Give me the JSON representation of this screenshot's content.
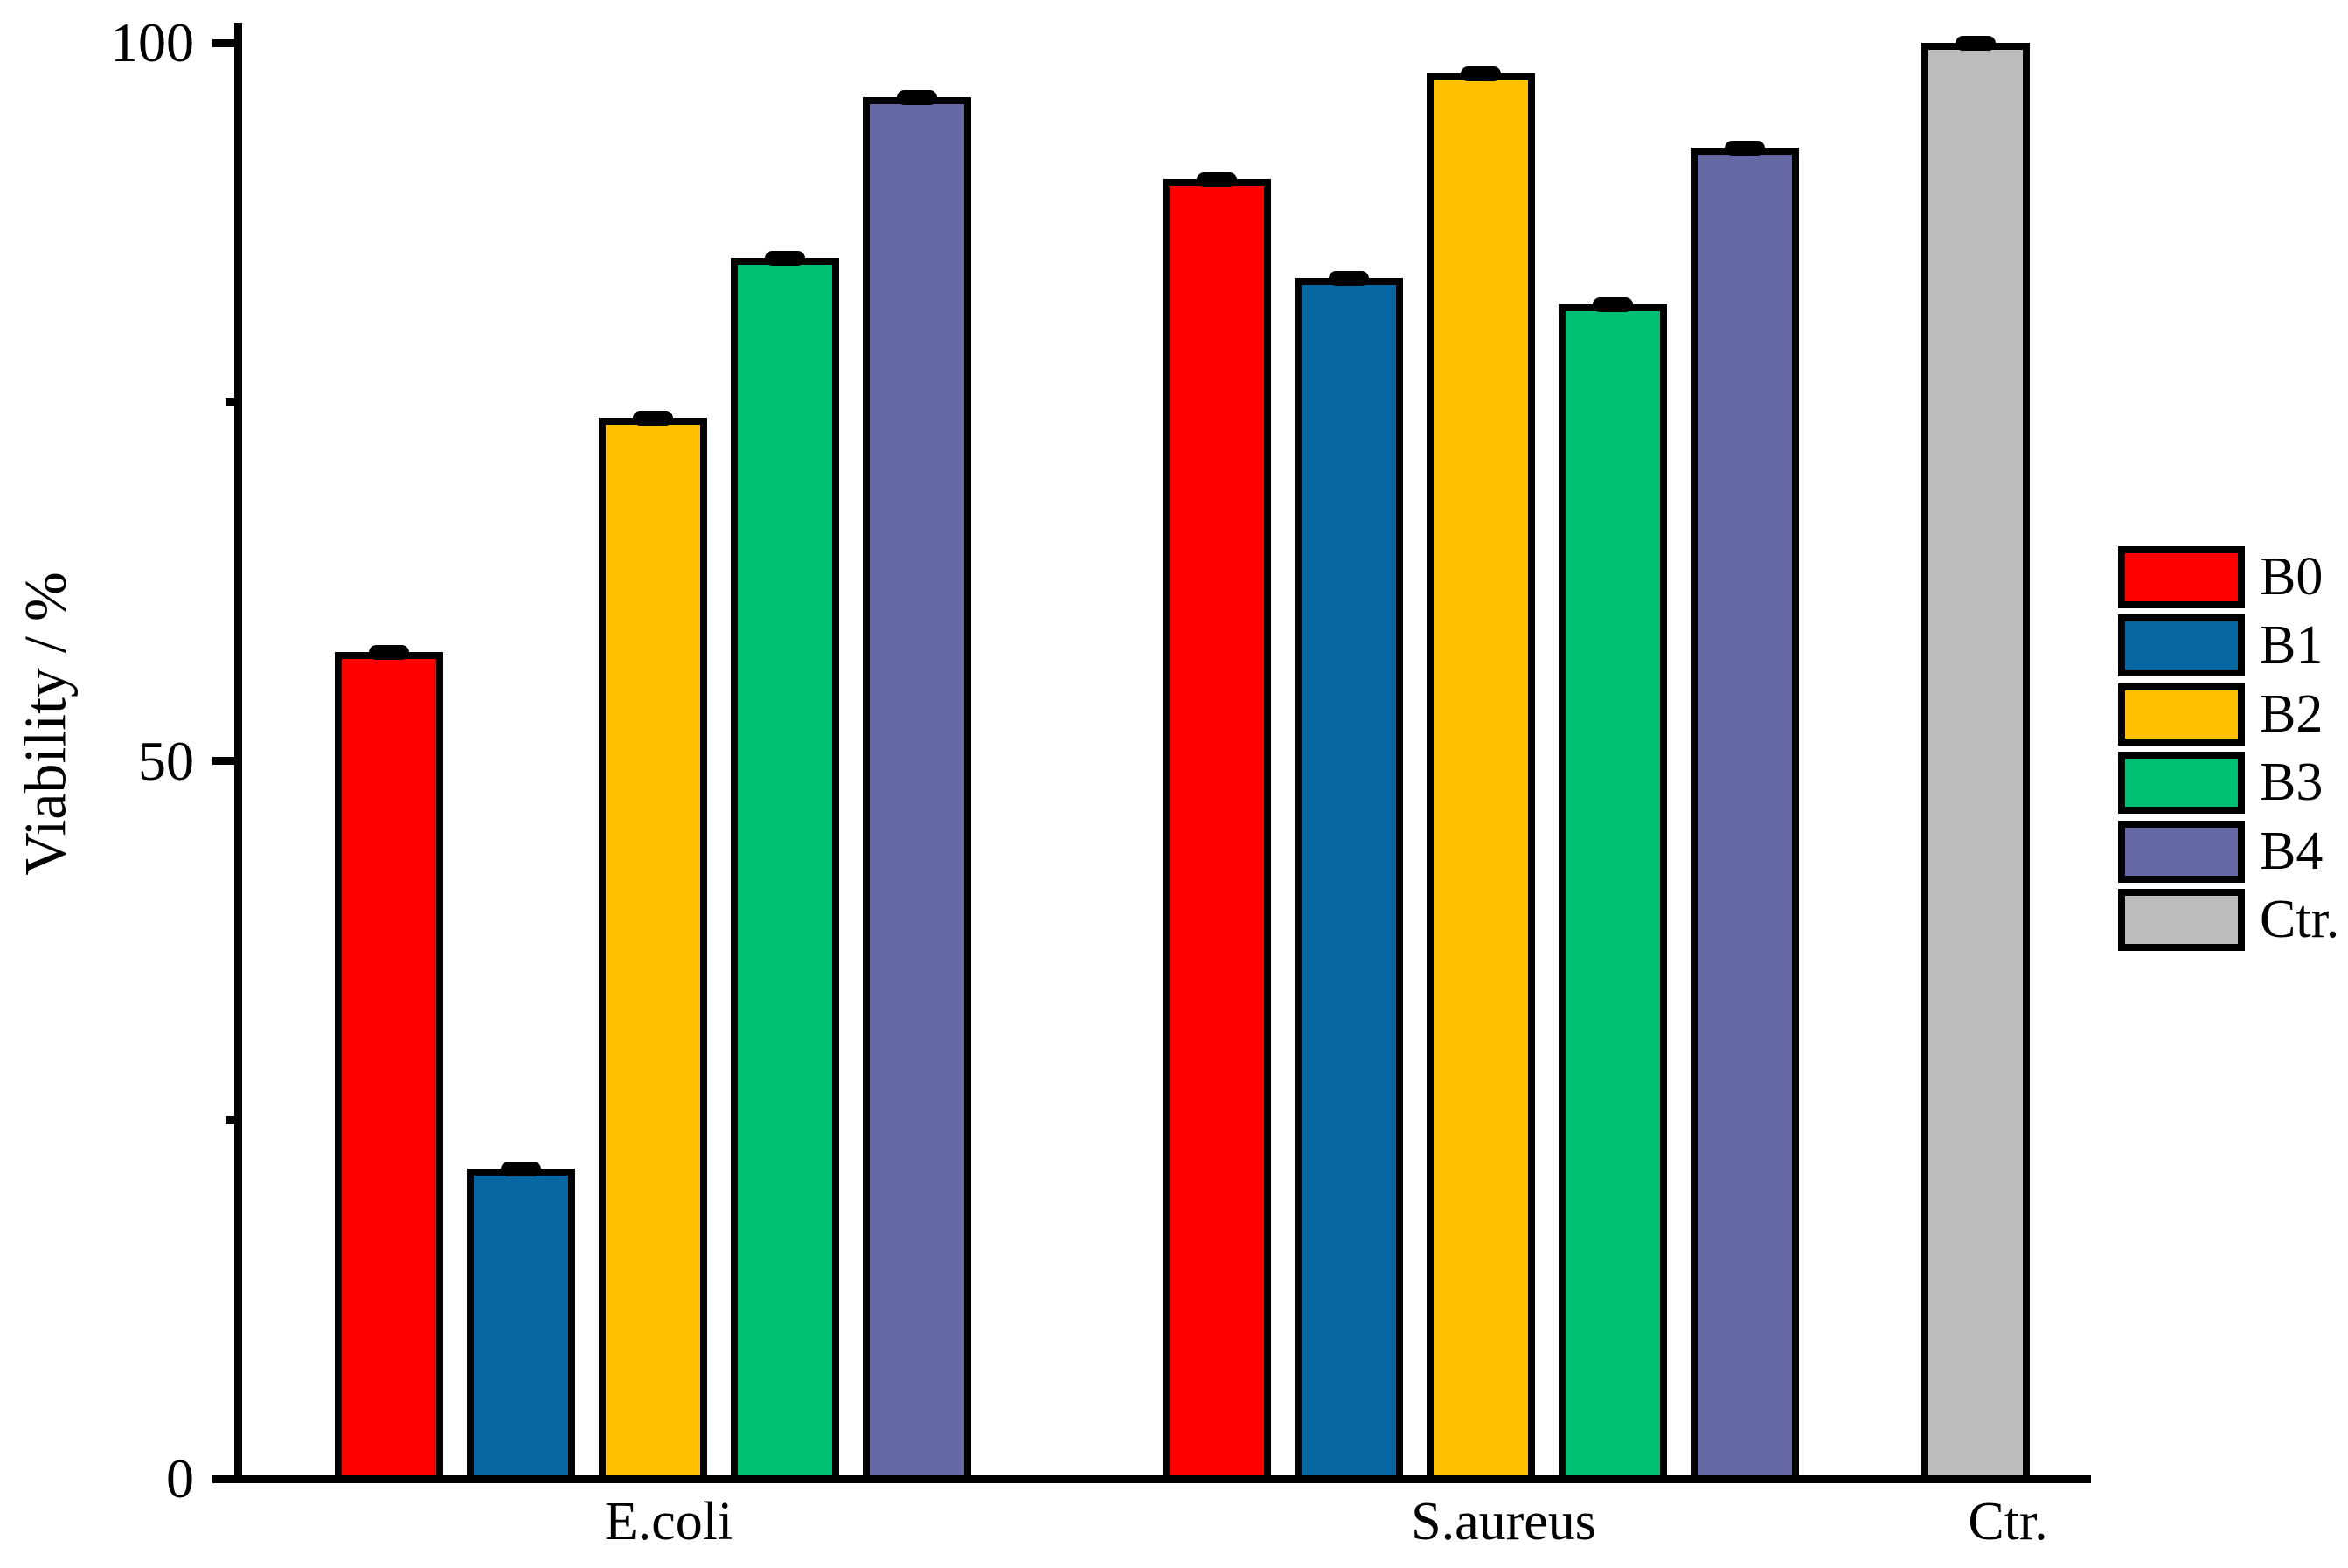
{
  "chart_data": {
    "type": "bar",
    "title": "",
    "xlabel": "",
    "ylabel": "Viability / %",
    "ylim": [
      0,
      100
    ],
    "yticks_major": [
      0,
      50,
      100
    ],
    "yticks_minor": [
      25,
      75
    ],
    "grid": false,
    "legend_position": "right-outside",
    "bar_outline_color": "#000000",
    "error_bar_color": "#000000",
    "categories": [
      "E.coli",
      "S.aureus",
      "Ctr."
    ],
    "series": [
      {
        "name": "B0",
        "color": "#FF0000",
        "values": [
          57.6,
          90.5,
          null
        ],
        "errors": [
          0.5,
          0.5,
          null
        ]
      },
      {
        "name": "B1",
        "color": "#0566A2",
        "values": [
          21.6,
          83.6,
          null
        ],
        "errors": [
          0.5,
          0.5,
          null
        ]
      },
      {
        "name": "B2",
        "color": "#FFC000",
        "values": [
          73.9,
          97.9,
          null
        ],
        "errors": [
          0.5,
          0.5,
          null
        ]
      },
      {
        "name": "B3",
        "color": "#00C173",
        "values": [
          85.0,
          81.8,
          null
        ],
        "errors": [
          0.5,
          0.5,
          null
        ]
      },
      {
        "name": "B4",
        "color": "#6668A5",
        "values": [
          96.2,
          92.7,
          null
        ],
        "errors": [
          0.5,
          0.5,
          null
        ]
      },
      {
        "name": "Ctr.",
        "color": "#BCBCBC",
        "values": [
          null,
          null,
          100.0
        ],
        "errors": [
          null,
          null,
          0.4
        ]
      }
    ]
  }
}
